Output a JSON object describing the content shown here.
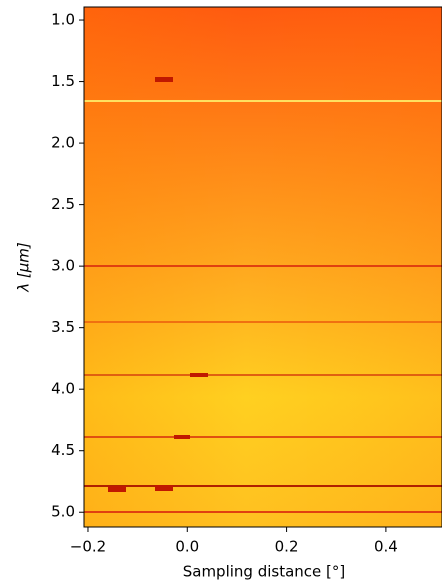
{
  "chart_data": {
    "type": "heatmap",
    "xlabel": "Sampling distance [°]",
    "ylabel": "λ [μm]",
    "xlim": [
      -0.208,
      0.513
    ],
    "ylim": [
      5.12,
      0.894
    ],
    "xticks": [
      {
        "value": -0.2,
        "label": "−0.2"
      },
      {
        "value": 0.0,
        "label": "0.0"
      },
      0.2,
      0.4
    ],
    "yticks": [
      {
        "value": 1.0,
        "label": "1.0"
      },
      1.5,
      {
        "value": 2.0,
        "label": "2.0"
      },
      2.5,
      {
        "value": 3.0,
        "label": "3.0"
      },
      3.5,
      {
        "value": 4.0,
        "label": "4.0"
      },
      4.5,
      {
        "value": 5.0,
        "label": "5.0"
      }
    ]
  }
}
